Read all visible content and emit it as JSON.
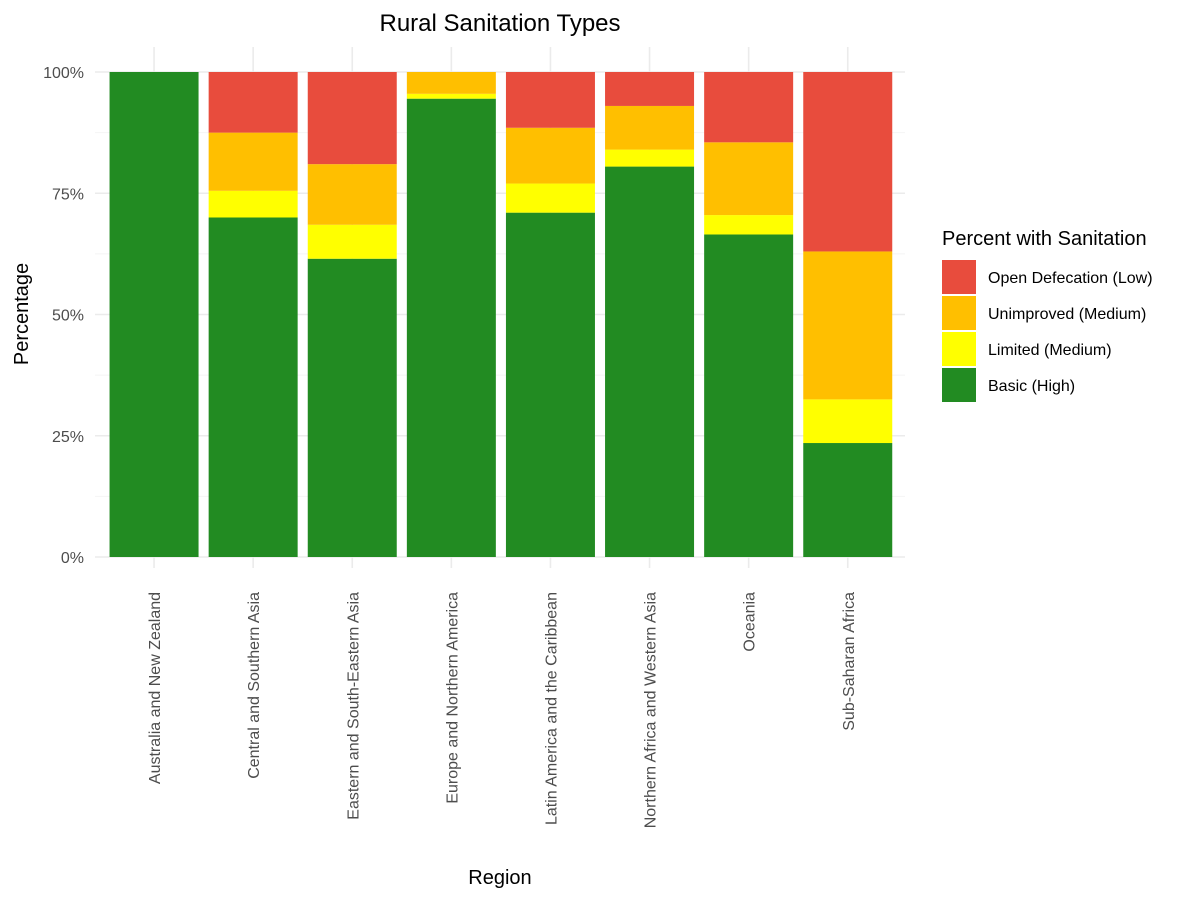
{
  "chart_data": {
    "type": "bar",
    "stacked": true,
    "title": "Rural Sanitation Types",
    "xlabel": "Region",
    "ylabel": "Percentage",
    "ylim": [
      0,
      100
    ],
    "yticks": [
      0,
      25,
      50,
      75,
      100
    ],
    "ytick_labels": [
      "0%",
      "25%",
      "50%",
      "75%",
      "100%"
    ],
    "categories": [
      "Australia and New Zealand",
      "Central and Southern Asia",
      "Eastern and South-Eastern Asia",
      "Europe and Northern America",
      "Latin America and the Caribbean",
      "Northern Africa and Western Asia",
      "Oceania",
      "Sub-Saharan Africa"
    ],
    "series": [
      {
        "name": "Basic (High)",
        "color": "#228B22",
        "values": [
          100,
          70,
          61.5,
          94.5,
          71,
          80.5,
          66.5,
          23.5
        ]
      },
      {
        "name": "Limited (Medium)",
        "color": "#FFFF00",
        "values": [
          0,
          5.5,
          7,
          1,
          6,
          3.5,
          4,
          9
        ]
      },
      {
        "name": "Unimproved (Medium)",
        "color": "#FFBF00",
        "values": [
          0,
          12,
          12.5,
          4.5,
          11.5,
          9,
          15,
          30.5
        ]
      },
      {
        "name": "Open Defecation (Low)",
        "color": "#E84C3D",
        "values": [
          0,
          12.5,
          19,
          0,
          11.5,
          7,
          14.5,
          37
        ]
      }
    ],
    "legend": {
      "title": "Percent with Sanitation",
      "position": "right",
      "order": [
        "Open Defecation (Low)",
        "Unimproved (Medium)",
        "Limited (Medium)",
        "Basic (High)"
      ]
    },
    "grid": true
  }
}
